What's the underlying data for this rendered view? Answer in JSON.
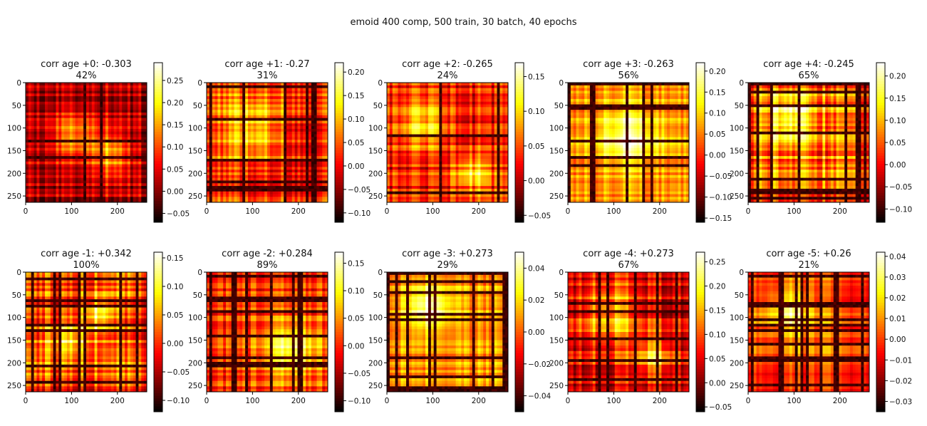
{
  "figure": {
    "title": "emoid 400 comp, 500 train, 30 batch, 40 epochs",
    "colormap": "hot"
  },
  "chart_data": [
    {
      "type": "heatmap",
      "title": "corr age +0: -0.303",
      "subtitle": "42%",
      "xlim": [
        0,
        264
      ],
      "ylim": [
        0,
        264
      ],
      "xticks": [
        "0",
        "100",
        "200"
      ],
      "yticks": [
        "0",
        "50",
        "100",
        "150",
        "200",
        "250"
      ],
      "colorbar": {
        "vmin": -0.07,
        "vmax": 0.29,
        "ticks": [
          "0.25",
          "0.20",
          "0.15",
          "0.10",
          "0.05",
          "0.00",
          "−0.05"
        ]
      },
      "pattern": {
        "base": 0.28,
        "spread": 0.3,
        "blobs": [
          [
            0.4,
            0.45,
            0.25,
            0.25
          ],
          [
            0.7,
            0.6,
            0.2,
            0.25
          ]
        ],
        "seed": 3
      }
    },
    {
      "type": "heatmap",
      "title": "corr age +1: -0.27",
      "subtitle": "31%",
      "xlim": [
        0,
        264
      ],
      "ylim": [
        0,
        264
      ],
      "xticks": [
        "0",
        "100",
        "200"
      ],
      "yticks": [
        "0",
        "50",
        "100",
        "150",
        "200",
        "250"
      ],
      "colorbar": {
        "vmin": -0.12,
        "vmax": 0.22,
        "ticks": [
          "0.20",
          "0.15",
          "0.10",
          "0.05",
          "0.00",
          "−0.05",
          "−0.10"
        ]
      },
      "pattern": {
        "base": 0.42,
        "spread": 0.32,
        "blobs": [
          [
            0.38,
            0.4,
            0.3,
            0.35
          ]
        ],
        "seed": 7
      }
    },
    {
      "type": "heatmap",
      "title": "corr age +2: -0.265",
      "subtitle": "24%",
      "xlim": [
        0,
        264
      ],
      "ylim": [
        0,
        264
      ],
      "xticks": [
        "0",
        "100",
        "200"
      ],
      "yticks": [
        "0",
        "50",
        "100",
        "150",
        "200",
        "250"
      ],
      "colorbar": {
        "vmin": -0.06,
        "vmax": 0.17,
        "ticks": [
          "0.15",
          "0.10",
          "0.05",
          "0.00",
          "−0.05"
        ]
      },
      "pattern": {
        "base": 0.38,
        "spread": 0.34,
        "blobs": [
          [
            0.3,
            0.35,
            0.25,
            0.3
          ],
          [
            0.7,
            0.75,
            0.2,
            0.2
          ]
        ],
        "seed": 11
      }
    },
    {
      "type": "heatmap",
      "title": "corr age +3: -0.263",
      "subtitle": "56%",
      "xlim": [
        0,
        264
      ],
      "ylim": [
        0,
        264
      ],
      "xticks": [
        "0",
        "100",
        "200"
      ],
      "yticks": [
        "0",
        "50",
        "100",
        "150",
        "200",
        "250"
      ],
      "colorbar": {
        "vmin": -0.16,
        "vmax": 0.22,
        "ticks": [
          "0.20",
          "0.15",
          "0.10",
          "0.05",
          "0.00",
          "−0.05",
          "−0.10",
          "−0.15"
        ]
      },
      "pattern": {
        "base": 0.58,
        "spread": 0.22,
        "blobs": [
          [
            0.5,
            0.45,
            0.35,
            0.35
          ]
        ],
        "seed": 5
      }
    },
    {
      "type": "heatmap",
      "title": "corr age +4: -0.245",
      "subtitle": "65%",
      "xlim": [
        0,
        264
      ],
      "ylim": [
        0,
        264
      ],
      "xticks": [
        "0",
        "100",
        "200"
      ],
      "yticks": [
        "0",
        "50",
        "100",
        "150",
        "200",
        "250"
      ],
      "colorbar": {
        "vmin": -0.13,
        "vmax": 0.23,
        "ticks": [
          "0.20",
          "0.15",
          "0.10",
          "0.05",
          "0.00",
          "−0.05",
          "−0.10"
        ]
      },
      "pattern": {
        "base": 0.55,
        "spread": 0.4,
        "blobs": [
          [
            0.35,
            0.3,
            0.25,
            0.3
          ]
        ],
        "seed": 13
      }
    },
    {
      "type": "heatmap",
      "title": "corr age -1: +0.342",
      "subtitle": "100%",
      "xlim": [
        0,
        264
      ],
      "ylim": [
        0,
        264
      ],
      "xticks": [
        "0",
        "100",
        "200"
      ],
      "yticks": [
        "0",
        "50",
        "100",
        "150",
        "200",
        "250"
      ],
      "colorbar": {
        "vmin": -0.12,
        "vmax": 0.16,
        "ticks": [
          "0.15",
          "0.10",
          "0.05",
          "0.00",
          "−0.05",
          "−0.10"
        ]
      },
      "pattern": {
        "base": 0.48,
        "spread": 0.36,
        "blobs": [
          [
            0.35,
            0.55,
            0.25,
            0.2
          ],
          [
            0.6,
            0.35,
            0.15,
            0.2
          ]
        ],
        "seed": 17
      }
    },
    {
      "type": "heatmap",
      "title": "corr age -2: +0.284",
      "subtitle": "89%",
      "xlim": [
        0,
        264
      ],
      "ylim": [
        0,
        264
      ],
      "xticks": [
        "0",
        "100",
        "200"
      ],
      "yticks": [
        "0",
        "50",
        "100",
        "150",
        "200",
        "250"
      ],
      "colorbar": {
        "vmin": -0.12,
        "vmax": 0.17,
        "ticks": [
          "0.15",
          "0.10",
          "0.05",
          "0.00",
          "−0.05",
          "−0.10"
        ]
      },
      "pattern": {
        "base": 0.45,
        "spread": 0.28,
        "blobs": [
          [
            0.7,
            0.65,
            0.3,
            0.3
          ]
        ],
        "seed": 19
      }
    },
    {
      "type": "heatmap",
      "title": "corr age -3: +0.273",
      "subtitle": "29%",
      "xlim": [
        0,
        264
      ],
      "ylim": [
        0,
        264
      ],
      "xticks": [
        "0",
        "100",
        "200"
      ],
      "yticks": [
        "0",
        "50",
        "100",
        "150",
        "200",
        "250"
      ],
      "colorbar": {
        "vmin": -0.05,
        "vmax": 0.05,
        "ticks": [
          "0.04",
          "0.02",
          "0.00",
          "−0.02",
          "−0.04"
        ]
      },
      "pattern": {
        "base": 0.6,
        "spread": 0.22,
        "blobs": [
          [
            0.35,
            0.3,
            0.25,
            0.25
          ]
        ],
        "seed": 23
      }
    },
    {
      "type": "heatmap",
      "title": "corr age -4: +0.273",
      "subtitle": "67%",
      "xlim": [
        0,
        264
      ],
      "ylim": [
        0,
        264
      ],
      "xticks": [
        "0",
        "100",
        "200"
      ],
      "yticks": [
        "0",
        "50",
        "100",
        "150",
        "200",
        "250"
      ],
      "colorbar": {
        "vmin": -0.06,
        "vmax": 0.27,
        "ticks": [
          "0.25",
          "0.20",
          "0.15",
          "0.10",
          "0.05",
          "0.00",
          "−0.05"
        ]
      },
      "pattern": {
        "base": 0.3,
        "spread": 0.35,
        "blobs": [
          [
            0.35,
            0.35,
            0.3,
            0.35
          ],
          [
            0.7,
            0.7,
            0.2,
            0.2
          ]
        ],
        "seed": 29
      }
    },
    {
      "type": "heatmap",
      "title": "corr age -5: +0.26",
      "subtitle": "21%",
      "xlim": [
        0,
        264
      ],
      "ylim": [
        0,
        264
      ],
      "xticks": [
        "0",
        "100",
        "200"
      ],
      "yticks": [
        "0",
        "50",
        "100",
        "150",
        "200",
        "250"
      ],
      "colorbar": {
        "vmin": -0.035,
        "vmax": 0.042,
        "ticks": [
          "0.04",
          "0.03",
          "0.02",
          "0.01",
          "0.00",
          "−0.01",
          "−0.02",
          "−0.03"
        ]
      },
      "pattern": {
        "base": 0.48,
        "spread": 0.26,
        "blobs": [
          [
            0.33,
            0.32,
            0.25,
            0.25
          ]
        ],
        "seed": 31
      }
    }
  ]
}
